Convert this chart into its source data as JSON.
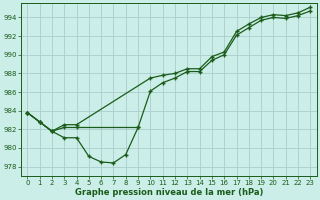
{
  "background_color": "#cceee8",
  "grid_color": "#aacccc",
  "line_color": "#1a5c1a",
  "xlabel": "Graphe pression niveau de la mer (hPa)",
  "ylim": [
    977,
    995.5
  ],
  "xlim": [
    -0.5,
    23.5
  ],
  "yticks": [
    978,
    980,
    982,
    984,
    986,
    988,
    990,
    992,
    994
  ],
  "xticks": [
    0,
    1,
    2,
    3,
    4,
    5,
    6,
    7,
    8,
    9,
    10,
    11,
    12,
    13,
    14,
    15,
    16,
    17,
    18,
    19,
    20,
    21,
    22,
    23
  ],
  "line_jagged_x": [
    0,
    1,
    2,
    3,
    4,
    5,
    6,
    7,
    8,
    9
  ],
  "line_jagged_y": [
    983.8,
    982.8,
    981.8,
    981.1,
    981.1,
    979.1,
    978.5,
    978.4,
    979.3,
    982.2
  ],
  "line_low_x": [
    0,
    1,
    2,
    3,
    4,
    9,
    10,
    11,
    12,
    13,
    14,
    15,
    16,
    17,
    18,
    19,
    20,
    21,
    22,
    23
  ],
  "line_low_y": [
    983.8,
    982.8,
    981.8,
    982.2,
    982.2,
    982.2,
    986.1,
    987.0,
    987.5,
    988.2,
    988.2,
    989.4,
    990.0,
    992.1,
    992.9,
    993.7,
    994.0,
    993.9,
    994.2,
    994.7
  ],
  "line_high_x": [
    0,
    1,
    2,
    3,
    4,
    10,
    11,
    12,
    13,
    14,
    15,
    16,
    17,
    18,
    19,
    20,
    21,
    22,
    23
  ],
  "line_high_y": [
    983.8,
    982.8,
    981.8,
    982.5,
    982.5,
    987.5,
    987.8,
    988.0,
    988.5,
    988.5,
    989.8,
    990.3,
    992.5,
    993.3,
    994.0,
    994.3,
    994.2,
    994.5,
    995.1
  ]
}
